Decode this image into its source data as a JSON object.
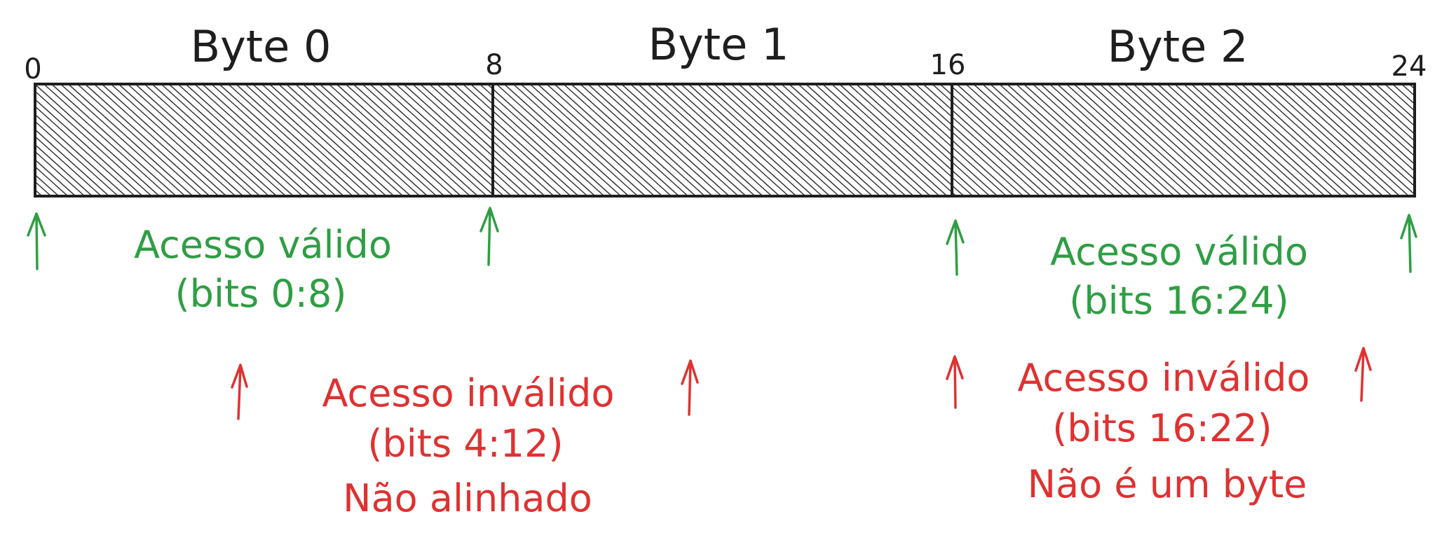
{
  "colors": {
    "ink": "#1e1e1e",
    "valid": "#2f9e44",
    "invalid": "#e03131"
  },
  "bytes": [
    {
      "label": "Byte 0"
    },
    {
      "label": "Byte 1"
    },
    {
      "label": "Byte 2"
    }
  ],
  "bit_ticks": [
    "0",
    "8",
    "16",
    "24"
  ],
  "valid_accesses": [
    {
      "line1": "Acesso válido",
      "line2": "(bits 0:8)"
    },
    {
      "line1": "Acesso válido",
      "line2": "(bits 16:24)"
    }
  ],
  "invalid_accesses": [
    {
      "line1": "Acesso inválido",
      "line2": "(bits 4:12)",
      "line3": "Não alinhado"
    },
    {
      "line1": "Acesso inválido",
      "line2": "(bits 16:22)",
      "line3": "Não é um byte"
    }
  ]
}
